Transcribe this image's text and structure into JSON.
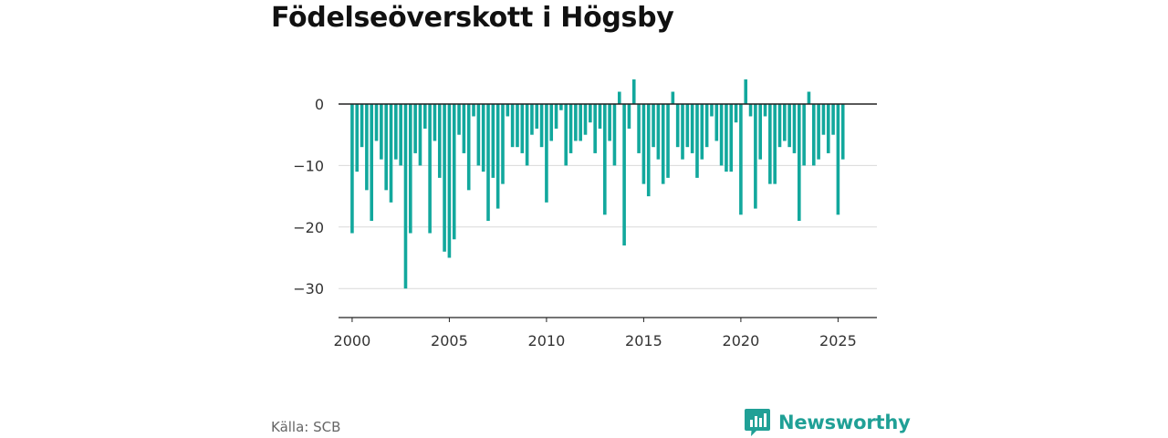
{
  "title": "Födelseöverskott i Högsby",
  "source": "Källa: SCB",
  "brand": {
    "name": "Newsworthy",
    "icon": "bar-chart-speech-bubble-icon",
    "color": "#20a096"
  },
  "chart_data": {
    "type": "bar",
    "title": "Födelseöverskott i Högsby",
    "xlabel": "",
    "ylabel": "",
    "bar_color": "#12a89d",
    "grid": true,
    "xlim": [
      1999.3,
      2027.0
    ],
    "ylim": [
      -35,
      6
    ],
    "x_ticks": [
      2000,
      2005,
      2010,
      2015,
      2020,
      2025
    ],
    "x_tick_labels": [
      "2000",
      "2005",
      "2010",
      "2015",
      "2020",
      "2025"
    ],
    "y_ticks": [
      0,
      -10,
      -20,
      -30
    ],
    "y_tick_labels": [
      "0",
      "−10",
      "−20",
      "−30"
    ],
    "series": [
      {
        "start_year": 2000,
        "period": "quarter",
        "values": [
          -21,
          -11,
          -7,
          -14,
          -19,
          -6,
          -9,
          -14,
          -16,
          -9,
          -10,
          -30,
          -21,
          -8,
          -10,
          -4,
          -21,
          -6,
          -12,
          -24,
          -25,
          -22,
          -5,
          -8,
          -14,
          -2,
          -10,
          -11,
          -19,
          -12,
          -17,
          -13,
          -2,
          -7,
          -7,
          -8,
          -10,
          -5,
          -4,
          -7,
          -16,
          -6,
          -4,
          -1,
          -10,
          -8,
          -6,
          -6,
          -5,
          -3,
          -8,
          -4,
          -18,
          -6,
          -10,
          2,
          -23,
          -4,
          4,
          -8,
          -13,
          -15,
          -7,
          -9,
          -13,
          -12,
          2,
          -7,
          -9,
          -7,
          -8,
          -12,
          -9,
          -7,
          -2,
          -6,
          -10,
          -11,
          -11,
          -3,
          -18,
          4,
          -2,
          -17,
          -9,
          -2,
          -13,
          -13,
          -7,
          -6,
          -7,
          -8,
          -19,
          -10,
          2,
          -10,
          -9,
          -5,
          -8,
          -5,
          -18,
          -9
        ]
      }
    ]
  }
}
